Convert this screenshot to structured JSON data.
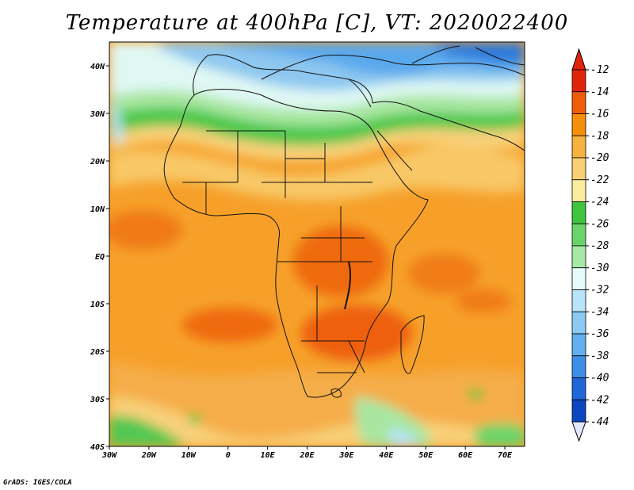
{
  "title": "Temperature at 400hPa [C], VT: 2020022400",
  "credit": "GrADS: IGES/COLA",
  "map": {
    "lat_labels": [
      "40N",
      "30N",
      "20N",
      "10N",
      "EQ",
      "10S",
      "20S",
      "30S",
      "40S"
    ],
    "lon_labels": [
      "30W",
      "20W",
      "10W",
      "0",
      "10E",
      "20E",
      "30E",
      "40E",
      "50E",
      "60E",
      "70E"
    ],
    "lat_range": [
      -40,
      45
    ],
    "lon_range": [
      -30,
      75
    ]
  },
  "colorbar": {
    "labels": [
      "-12",
      "-14",
      "-16",
      "-18",
      "-20",
      "-22",
      "-24",
      "-26",
      "-28",
      "-30",
      "-32",
      "-34",
      "-36",
      "-38",
      "-40",
      "-42",
      "-44"
    ],
    "colors": [
      "#e0240c",
      "#f25d0a",
      "#f58f0b",
      "#f6b23f",
      "#f8cf72",
      "#faec9c",
      "#3ec43e",
      "#6ad46a",
      "#a6e8a6",
      "#e6fcfc",
      "#b7e4f8",
      "#8ccaf2",
      "#62aeee",
      "#3d8ee6",
      "#1f66d9",
      "#0d44bf",
      "#06148c"
    ],
    "top_color": "#e0240c",
    "bottom_color": "#e6e6ff"
  }
}
